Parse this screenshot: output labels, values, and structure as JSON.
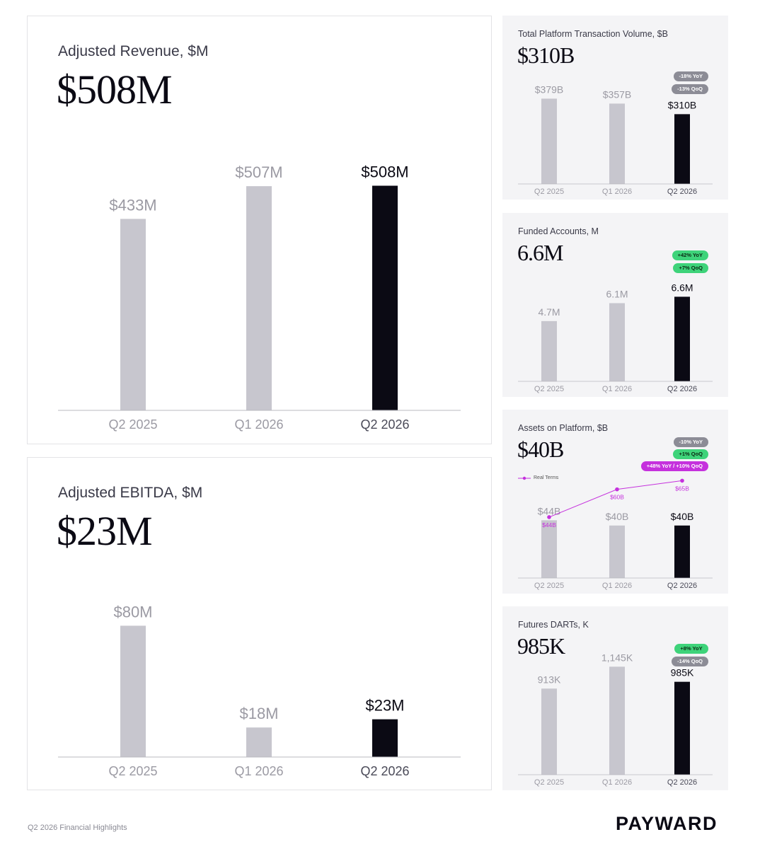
{
  "footer": {
    "text": "Q2 2026 Financial Highlights",
    "logo": "PAYWARD"
  },
  "colors": {
    "past": "#c7c6ce",
    "current": "#0b0a14",
    "past_label": "#9b9aa3",
    "current_label": "#0b0a14",
    "real_terms": "#c531dd",
    "axis": "#b9b9bf"
  },
  "panels": {
    "revenue": {
      "title": "Adjusted Revenue, $M",
      "value": "$508M"
    },
    "ebitda": {
      "title": "Adjusted EBITDA, $M",
      "value": "$23M"
    },
    "volume": {
      "title": "Total Platform Transaction Volume, $B",
      "value": "$310B",
      "badges": [
        {
          "text": "-18% YoY",
          "color": "gray"
        },
        {
          "text": "-13% QoQ",
          "color": "gray"
        }
      ]
    },
    "accounts": {
      "title": "Funded Accounts, M",
      "value": "6.6M",
      "badges": [
        {
          "text": "+42% YoY",
          "color": "green"
        },
        {
          "text": "+7% QoQ",
          "color": "green"
        }
      ]
    },
    "assets": {
      "title": "Assets on Platform, $B",
      "value": "$40B",
      "legend": "Real Terms",
      "badges": [
        {
          "text": "-10% YoY",
          "color": "gray"
        },
        {
          "text": "+1% QoQ",
          "color": "green"
        },
        {
          "text": "+48% YoY / +10% QoQ",
          "color": "purple"
        }
      ]
    },
    "darts": {
      "title": "Futures DARTs, K",
      "value": "985K",
      "badges": [
        {
          "text": "+8% YoY",
          "color": "green"
        },
        {
          "text": "-14% QoQ",
          "color": "gray"
        }
      ]
    }
  },
  "chart_data": [
    {
      "id": "revenue",
      "type": "bar",
      "title": "Adjusted Revenue, $M",
      "categories": [
        "Q2 2025",
        "Q1 2026",
        "Q2 2026"
      ],
      "values": [
        433,
        507,
        508
      ],
      "labels": [
        "$433M",
        "$507M",
        "$508M"
      ],
      "ylim": [
        0,
        600
      ]
    },
    {
      "id": "ebitda",
      "type": "bar",
      "title": "Adjusted EBITDA, $M",
      "categories": [
        "Q2 2025",
        "Q1 2026",
        "Q2 2026"
      ],
      "values": [
        80,
        18,
        23
      ],
      "labels": [
        "$80M",
        "$18M",
        "$23M"
      ],
      "ylim": [
        0,
        100
      ]
    },
    {
      "id": "volume",
      "type": "bar",
      "title": "Total Platform Transaction Volume, $B",
      "categories": [
        "Q2 2025",
        "Q1 2026",
        "Q2 2026"
      ],
      "values": [
        379,
        357,
        310
      ],
      "labels": [
        "$379B",
        "$357B",
        "$310B"
      ],
      "ylim": [
        0,
        440
      ]
    },
    {
      "id": "accounts",
      "type": "bar",
      "title": "Funded Accounts, M",
      "categories": [
        "Q2 2025",
        "Q1 2026",
        "Q2 2026"
      ],
      "values": [
        4.7,
        6.1,
        6.6
      ],
      "labels": [
        "4.7M",
        "6.1M",
        "6.6M"
      ],
      "ylim": [
        0,
        8.5
      ]
    },
    {
      "id": "assets",
      "type": "bar",
      "title": "Assets on Platform, $B",
      "categories": [
        "Q2 2025",
        "Q1 2026",
        "Q2 2026"
      ],
      "values": [
        44,
        40,
        40
      ],
      "labels": [
        "$44B",
        "$40B",
        "$40B"
      ],
      "ylim": [
        0,
        90
      ],
      "overlay": {
        "type": "line",
        "name": "Real Terms",
        "values": [
          44,
          60,
          65
        ],
        "labels": [
          "$44B",
          "$60B",
          "$65B"
        ]
      }
    },
    {
      "id": "darts",
      "type": "bar",
      "title": "Futures DARTs, K",
      "categories": [
        "Q2 2025",
        "Q1 2026",
        "Q2 2026"
      ],
      "values": [
        913,
        1145,
        985
      ],
      "labels": [
        "913K",
        "1,145K",
        "985K"
      ],
      "ylim": [
        0,
        1350
      ]
    }
  ]
}
